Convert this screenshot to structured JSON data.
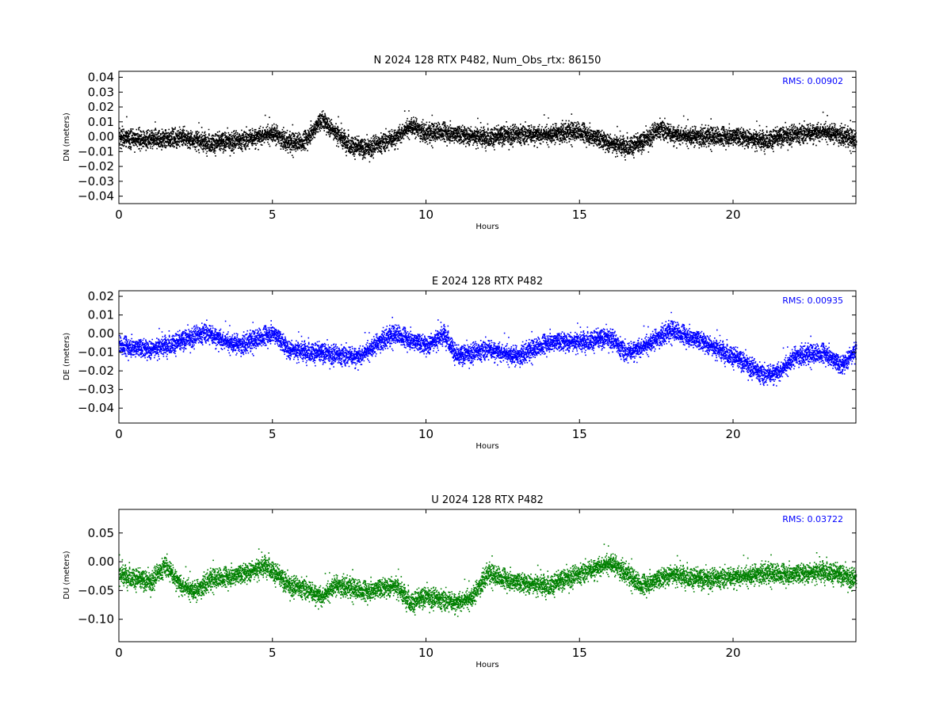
{
  "chart_data": [
    {
      "type": "scatter",
      "title": "N 2024 128 RTX  P482, Num_Obs_rtx: 86150",
      "xlabel": "Hours",
      "ylabel": "DN (meters)",
      "xlim": [
        0,
        24
      ],
      "ylim": [
        -0.045,
        0.044
      ],
      "xticks": [
        "0",
        "5",
        "10",
        "15",
        "20"
      ],
      "yticks": [
        "-0.04",
        "-0.03",
        "-0.02",
        "-0.01",
        "0.00",
        "0.01",
        "0.02",
        "0.03",
        "0.04"
      ],
      "color": "#000000",
      "annotation": "RMS:  0.00902",
      "annotation_color": "#0000ff",
      "spread": 0.011,
      "series": [
        {
          "x": [
            0,
            1,
            2,
            3,
            4,
            5,
            5.5,
            6,
            6.6,
            7,
            7.5,
            8,
            8.5,
            9,
            9.5,
            10,
            10.5,
            11,
            12,
            13,
            14,
            15,
            16,
            16.5,
            17,
            17.6,
            18,
            19,
            20,
            21,
            22,
            23,
            24
          ],
          "y": [
            0.0,
            -0.002,
            0.0,
            -0.004,
            -0.002,
            0.003,
            -0.004,
            -0.003,
            0.012,
            0.004,
            -0.005,
            -0.008,
            -0.004,
            0.0,
            0.008,
            0.002,
            0.004,
            0.002,
            0.0,
            0.002,
            0.002,
            0.004,
            -0.004,
            -0.006,
            -0.004,
            0.006,
            0.002,
            0.0,
            0.001,
            -0.002,
            0.002,
            0.004,
            -0.002
          ]
        }
      ]
    },
    {
      "type": "scatter",
      "title": "E 2024 128 RTX  P482",
      "xlabel": "Hours",
      "ylabel": "DE (meters)",
      "xlim": [
        0,
        24
      ],
      "ylim": [
        -0.048,
        0.023
      ],
      "xticks": [
        "0",
        "5",
        "10",
        "15",
        "20"
      ],
      "yticks": [
        "-0.04",
        "-0.03",
        "-0.02",
        "-0.01",
        "0.00",
        "0.01",
        "0.02"
      ],
      "color": "#0000ff",
      "annotation": "RMS:  0.00935",
      "annotation_color": "#0000ff",
      "spread": 0.009,
      "series": [
        {
          "x": [
            0,
            1,
            2,
            2.8,
            3.5,
            4,
            5,
            5.5,
            6,
            7,
            7.8,
            8.5,
            9,
            10,
            10.6,
            11,
            12,
            13,
            14,
            15,
            16,
            16.5,
            17,
            18,
            19,
            20,
            21,
            21.5,
            22,
            23,
            23.5,
            24
          ],
          "y": [
            -0.006,
            -0.008,
            -0.004,
            0.001,
            -0.004,
            -0.006,
            0.001,
            -0.008,
            -0.009,
            -0.011,
            -0.012,
            -0.004,
            0.0,
            -0.006,
            0.0,
            -0.012,
            -0.008,
            -0.012,
            -0.004,
            -0.004,
            -0.002,
            -0.01,
            -0.007,
            0.002,
            -0.004,
            -0.012,
            -0.022,
            -0.02,
            -0.012,
            -0.01,
            -0.017,
            -0.008
          ]
        }
      ]
    },
    {
      "type": "scatter",
      "title": "U 2024 128 RTX  P482",
      "xlabel": "Hours",
      "ylabel": "DU (meters)",
      "xlim": [
        0,
        24
      ],
      "ylim": [
        -0.139,
        0.091
      ],
      "xticks": [
        "0",
        "5",
        "10",
        "15",
        "20"
      ],
      "yticks": [
        "-0.10",
        "-0.05",
        "0.00",
        "0.05"
      ],
      "color": "#008000",
      "annotation": "RMS:  0.03722",
      "annotation_color": "#0000ff",
      "spread": 0.03,
      "series": [
        {
          "x": [
            0,
            1,
            1.5,
            2,
            2.5,
            3,
            4,
            4.8,
            5.5,
            6,
            6.6,
            7,
            8,
            9,
            9.5,
            10,
            11,
            11.5,
            12,
            13,
            14,
            15,
            16,
            16.5,
            17,
            18,
            19,
            20,
            21,
            22,
            23,
            24
          ],
          "y": [
            -0.02,
            -0.035,
            -0.005,
            -0.04,
            -0.05,
            -0.03,
            -0.02,
            -0.005,
            -0.04,
            -0.045,
            -0.06,
            -0.04,
            -0.05,
            -0.04,
            -0.07,
            -0.06,
            -0.07,
            -0.06,
            -0.02,
            -0.035,
            -0.04,
            -0.02,
            0.0,
            -0.02,
            -0.04,
            -0.02,
            -0.03,
            -0.025,
            -0.02,
            -0.02,
            -0.015,
            -0.03
          ]
        }
      ]
    }
  ]
}
